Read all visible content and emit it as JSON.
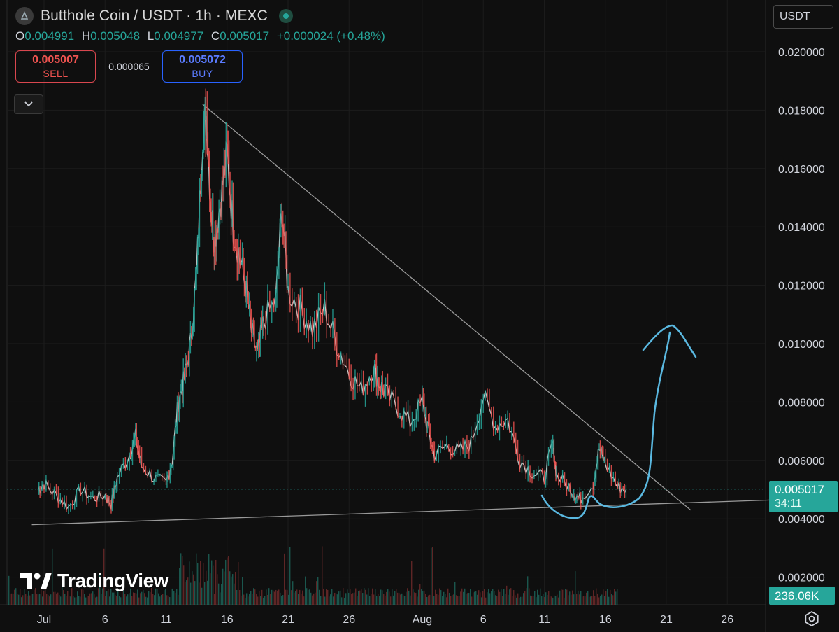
{
  "header": {
    "symbol_title": "Butthole Coin / USDT · 1h · MEXC",
    "ohlc": {
      "o_label": "O",
      "o": "0.004991",
      "h_label": "H",
      "h": "0.005048",
      "l_label": "L",
      "l": "0.004977",
      "c_label": "C",
      "c": "0.005017",
      "change": "+0.000024 (+0.48%)"
    },
    "sell": {
      "price": "0.005007",
      "label": "SELL"
    },
    "spread": "0.000065",
    "buy": {
      "price": "0.005072",
      "label": "BUY"
    }
  },
  "currency": "USDT",
  "price_tag": {
    "value": "0.005017",
    "countdown": "34:11"
  },
  "volume_tag": "236.06K",
  "watermark": "TradingView",
  "icons": [
    "coin-logo-icon",
    "status-dot-icon",
    "chevron-down-icon",
    "tradingview-logo-icon",
    "settings-gear-icon"
  ],
  "colors": {
    "up": "#26a69a",
    "down": "#ef5350",
    "annotation": "#5ab8e0",
    "trendline": "#9a9a9a",
    "background": "#0f0f0f"
  },
  "chart_data": {
    "type": "line",
    "x_ticks": [
      {
        "label": "Jul",
        "day": 1
      },
      {
        "label": "6",
        "day": 6
      },
      {
        "label": "11",
        "day": 11
      },
      {
        "label": "16",
        "day": 16
      },
      {
        "label": "21",
        "day": 21
      },
      {
        "label": "26",
        "day": 26
      },
      {
        "label": "Aug",
        "day": 32
      },
      {
        "label": "6",
        "day": 37
      },
      {
        "label": "11",
        "day": 42
      },
      {
        "label": "16",
        "day": 47
      },
      {
        "label": "21",
        "day": 52
      },
      {
        "label": "26",
        "day": 57
      }
    ],
    "y_ticks": [
      "0.020000",
      "0.018000",
      "0.016000",
      "0.014000",
      "0.012000",
      "0.010000",
      "0.008000",
      "0.006000",
      "0.004000",
      "0.002000"
    ],
    "ylim": [
      0.0018,
      0.0212
    ],
    "grid": true,
    "price_series": [
      [
        0.5,
        0.005
      ],
      [
        1,
        0.0052
      ],
      [
        2,
        0.0048
      ],
      [
        3,
        0.0044
      ],
      [
        4,
        0.005
      ],
      [
        5,
        0.0047
      ],
      [
        6,
        0.0048
      ],
      [
        6.5,
        0.0045
      ],
      [
        7,
        0.0054
      ],
      [
        8,
        0.0062
      ],
      [
        8.5,
        0.0068
      ],
      [
        9,
        0.0058
      ],
      [
        10,
        0.0054
      ],
      [
        11,
        0.0052
      ],
      [
        11.5,
        0.006
      ],
      [
        12,
        0.008
      ],
      [
        12.5,
        0.0088
      ],
      [
        13,
        0.01
      ],
      [
        13.5,
        0.0124
      ],
      [
        14,
        0.0172
      ],
      [
        14.3,
        0.0178
      ],
      [
        14.7,
        0.0145
      ],
      [
        15,
        0.0136
      ],
      [
        15.5,
        0.015
      ],
      [
        16,
        0.0165
      ],
      [
        16.5,
        0.014
      ],
      [
        17,
        0.013
      ],
      [
        17.5,
        0.012
      ],
      [
        18,
        0.0104
      ],
      [
        18.5,
        0.0096
      ],
      [
        19,
        0.0108
      ],
      [
        20,
        0.0115
      ],
      [
        20.5,
        0.0147
      ],
      [
        21,
        0.0118
      ],
      [
        22,
        0.0112
      ],
      [
        23,
        0.0105
      ],
      [
        24,
        0.0112
      ],
      [
        25,
        0.01
      ],
      [
        26,
        0.009
      ],
      [
        27,
        0.0084
      ],
      [
        28,
        0.0092
      ],
      [
        28.5,
        0.0086
      ],
      [
        29,
        0.0083
      ],
      [
        30,
        0.0078
      ],
      [
        31,
        0.0073
      ],
      [
        32,
        0.008
      ],
      [
        32.5,
        0.007
      ],
      [
        33,
        0.0062
      ],
      [
        34,
        0.0065
      ],
      [
        35,
        0.0063
      ],
      [
        36,
        0.0066
      ],
      [
        37,
        0.0082
      ],
      [
        38,
        0.0072
      ],
      [
        39,
        0.0074
      ],
      [
        40,
        0.006
      ],
      [
        41,
        0.0056
      ],
      [
        42,
        0.0054
      ],
      [
        42.7,
        0.0066
      ],
      [
        43,
        0.0055
      ],
      [
        44,
        0.0051
      ],
      [
        44.5,
        0.0048
      ],
      [
        45,
        0.0047
      ],
      [
        46,
        0.0052
      ],
      [
        46.5,
        0.0064
      ],
      [
        47,
        0.0059
      ],
      [
        48,
        0.0051
      ],
      [
        48.7,
        0.005
      ]
    ],
    "trendlines": [
      {
        "from": [
          14,
          0.0182
        ],
        "to": [
          54,
          0.0043
        ]
      },
      {
        "from": [
          0,
          0.0038
        ],
        "to": [
          61,
          0.00465
        ]
      }
    ],
    "current_price": 0.005017
  }
}
